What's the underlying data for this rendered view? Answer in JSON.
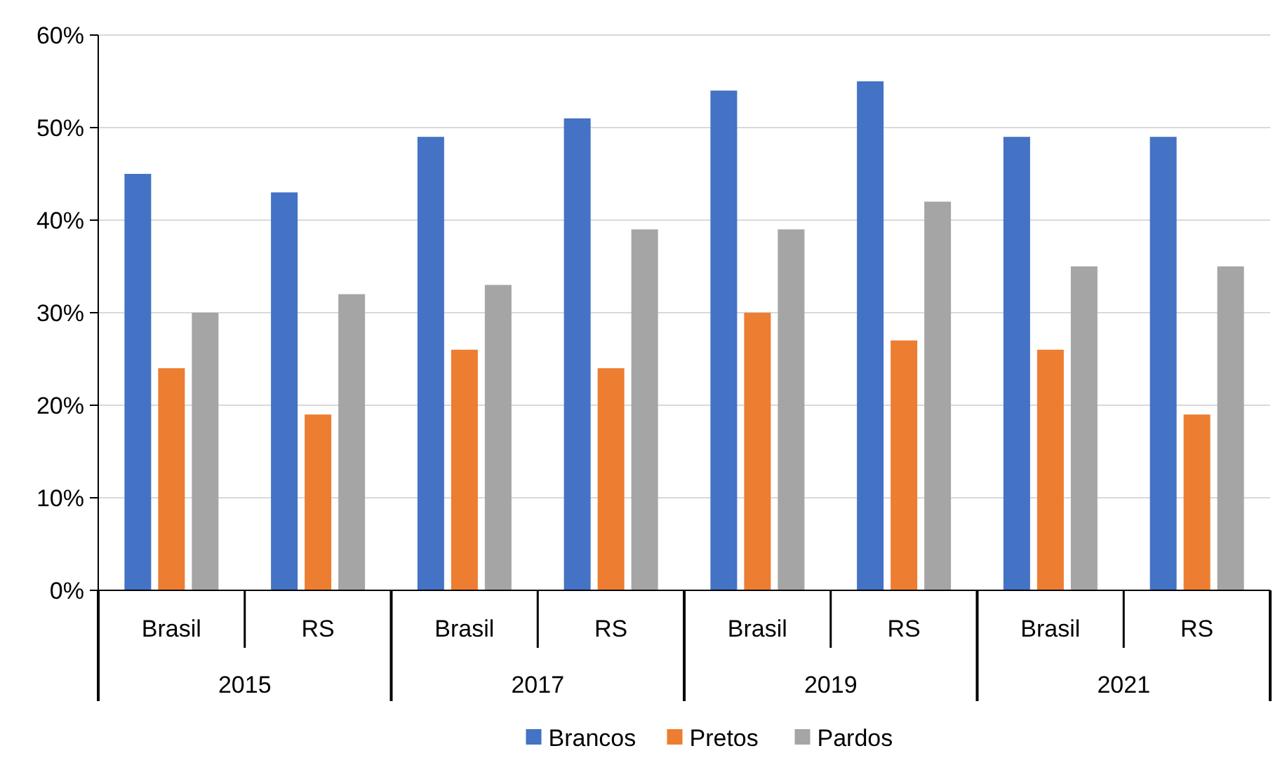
{
  "chart_data": {
    "type": "bar",
    "categories": [
      "Brasil",
      "RS",
      "Brasil",
      "RS",
      "Brasil",
      "RS",
      "Brasil",
      "RS"
    ],
    "annotations": [
      "2015",
      "2017",
      "2019",
      "2021"
    ],
    "series": [
      {
        "name": "Brancos",
        "color": "#4472c4",
        "values": [
          45,
          43,
          49,
          51,
          54,
          55,
          49,
          49
        ]
      },
      {
        "name": "Pretos",
        "color": "#ed7d31",
        "values": [
          24,
          19,
          26,
          24,
          30,
          27,
          26,
          19
        ]
      },
      {
        "name": "Pardos",
        "color": "#a5a5a5",
        "values": [
          30,
          32,
          33,
          39,
          39,
          42,
          35,
          35
        ]
      }
    ],
    "ylim": [
      0,
      60
    ],
    "yticks": [
      {
        "value": 0,
        "label": "0%"
      },
      {
        "value": 10,
        "label": "10%"
      },
      {
        "value": 20,
        "label": "20%"
      },
      {
        "value": 30,
        "label": "30%"
      },
      {
        "value": 40,
        "label": "40%"
      },
      {
        "value": 50,
        "label": "50%"
      },
      {
        "value": 60,
        "label": "60%"
      }
    ],
    "grid": "y",
    "legend": "bottom"
  }
}
